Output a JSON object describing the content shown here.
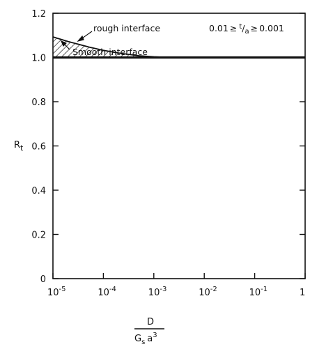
{
  "chart_data": {
    "type": "line",
    "title": "",
    "ylabel": "R",
    "ylabel_sub": "t",
    "xlabel_num": "D",
    "xlabel_den_base": "G",
    "xlabel_den_sub": "s",
    "xlabel_den_var": "a",
    "xlabel_den_exp": "3",
    "xscale": "log",
    "xlim": [
      1e-05,
      1
    ],
    "ylim": [
      0,
      1.2
    ],
    "x_ticks": [
      {
        "value": 1e-05,
        "base": "10",
        "exp": "-5"
      },
      {
        "value": 0.0001,
        "base": "10",
        "exp": "-4"
      },
      {
        "value": 0.001,
        "base": "10",
        "exp": "-3"
      },
      {
        "value": 0.01,
        "base": "10",
        "exp": "-2"
      },
      {
        "value": 0.1,
        "base": "10",
        "exp": "-1"
      },
      {
        "value": 1,
        "base": "1",
        "exp": ""
      }
    ],
    "y_ticks": [
      {
        "value": 0,
        "label": "0"
      },
      {
        "value": 0.2,
        "label": "0.2"
      },
      {
        "value": 0.4,
        "label": "0.4"
      },
      {
        "value": 0.6,
        "label": "0.6"
      },
      {
        "value": 0.8,
        "label": "0.8"
      },
      {
        "value": 1.0,
        "label": "1.0"
      },
      {
        "value": 1.2,
        "label": "1.2"
      }
    ],
    "series": [
      {
        "x": [
          1e-05,
          1
        ],
        "y": [
          1.0,
          1.0
        ],
        "style": "smooth"
      },
      {
        "x": [
          1e-05,
          2e-05,
          5e-05,
          0.0001,
          0.0002,
          0.0005,
          0.001,
          0.002,
          1
        ],
        "y": [
          1.093,
          1.072,
          1.048,
          1.032,
          1.02,
          1.008,
          1.003,
          1.0,
          1.0
        ],
        "style": "rough"
      }
    ],
    "annotations": {
      "rough": "rough interface",
      "smooth": "Smooth interface",
      "range_left": "0.01",
      "range_sym": "≥",
      "range_t": "t",
      "range_a": "a",
      "range_right": "0.001"
    }
  }
}
